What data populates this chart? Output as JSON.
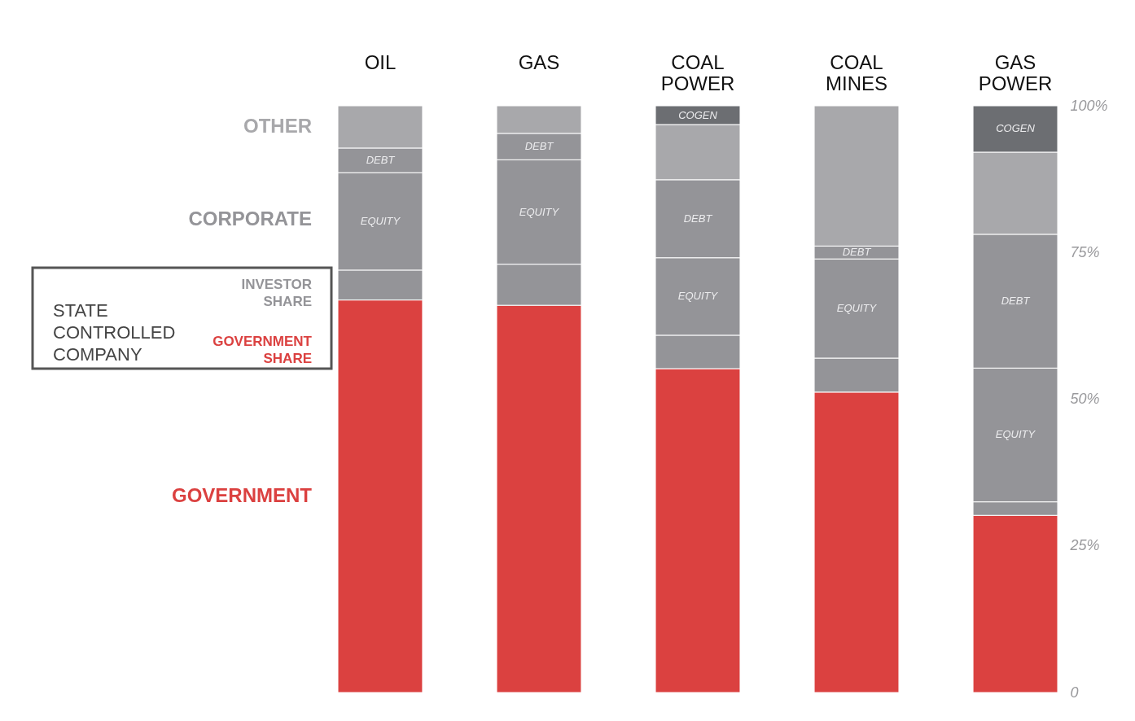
{
  "chart_data": {
    "type": "bar",
    "stacked": true,
    "categories": [
      "OIL",
      "GAS",
      "COAL POWER",
      "COAL MINES",
      "GAS POWER"
    ],
    "series": [
      {
        "name": "GOVERNMENT",
        "color": "#db4140",
        "values": [
          66.9,
          66.0,
          55.2,
          51.2,
          30.2
        ]
      },
      {
        "name": "INVESTOR SHARE",
        "color": "#949498",
        "values": [
          5.1,
          7.0,
          5.7,
          5.8,
          2.3
        ]
      },
      {
        "color": "#949498",
        "values": [
          16.6,
          17.8,
          13.2,
          16.9,
          22.8
        ],
        "value_labels": [
          "EQUITY",
          "EQUITY",
          "EQUITY",
          "EQUITY",
          "EQUITY"
        ]
      },
      {
        "color": "#949498",
        "values": [
          4.2,
          4.5,
          13.3,
          2.2,
          22.8
        ],
        "value_labels": [
          "DEBT",
          "DEBT",
          "DEBT",
          "DEBT",
          "DEBT"
        ]
      },
      {
        "name": "OTHER",
        "color": "#a8a8ab",
        "values": [
          7.2,
          4.7,
          9.4,
          23.9,
          14.0
        ]
      },
      {
        "color": "#6c6e72",
        "values": [
          null,
          null,
          3.2,
          null,
          7.9
        ],
        "value_labels": [
          null,
          null,
          "COGEN",
          null,
          "COGEN"
        ]
      }
    ],
    "ylim": [
      0,
      100
    ],
    "yticks": [
      0,
      {
        "value": 25,
        "label": "25%"
      },
      {
        "value": 50,
        "label": "50%"
      },
      {
        "value": 75,
        "label": "75%"
      },
      {
        "value": 100,
        "label": "100%"
      }
    ],
    "grid": false,
    "annotations": [
      "CORPORATE",
      "GOVERNMENT SHARE",
      "STATE CONTROLLED COMPANY"
    ]
  }
}
